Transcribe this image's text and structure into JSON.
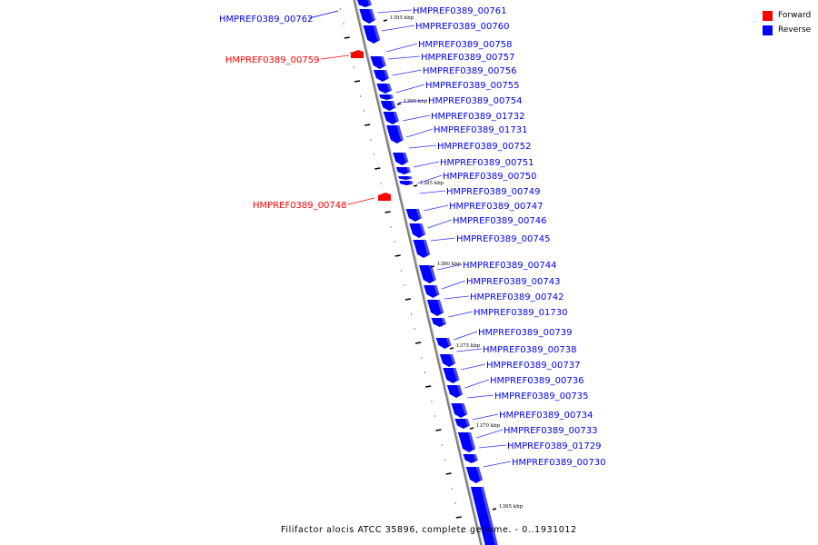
{
  "legend": {
    "items": [
      {
        "label": "Forward",
        "color": "#ff0000"
      },
      {
        "label": "Reverse",
        "color": "#0000ff"
      }
    ]
  },
  "caption": "Filifactor alocis ATCC 35896, complete genome. - 0..1931012",
  "colors": {
    "forward": "#ff0000",
    "reverse": "#0000ff",
    "label_forward": "#ff0000",
    "label_reverse": "#0000ee",
    "backbone": "#808080"
  },
  "tick_labels": [
    "1395 kbp",
    "1390 kbp",
    "1385 kbp",
    "1380 kbp",
    "1375 kbp",
    "1370 kbp",
    "1365 kbp"
  ],
  "genes_left": [
    {
      "name": "HMPREF0389_00762",
      "strand": "reverse"
    },
    {
      "name": "HMPREF0389_00759",
      "strand": "forward"
    },
    {
      "name": "HMPREF0389_00748",
      "strand": "forward"
    }
  ],
  "genes_right": [
    "HMPREF0389_00761",
    "HMPREF0389_00760",
    "HMPREF0389_00758",
    "HMPREF0389_00757",
    "HMPREF0389_00756",
    "HMPREF0389_00755",
    "HMPREF0389_00754",
    "HMPREF0389_01732",
    "HMPREF0389_01731",
    "HMPREF0389_00752",
    "HMPREF0389_00751",
    "HMPREF0389_00750",
    "HMPREF0389_00749",
    "HMPREF0389_00747",
    "HMPREF0389_00746",
    "HMPREF0389_00745",
    "HMPREF0389_00744",
    "HMPREF0389_00743",
    "HMPREF0389_00742",
    "HMPREF0389_01730",
    "HMPREF0389_00739",
    "HMPREF0389_00738",
    "HMPREF0389_00737",
    "HMPREF0389_00736",
    "HMPREF0389_00735",
    "HMPREF0389_00734",
    "HMPREF0389_00733",
    "HMPREF0389_01729",
    "HMPREF0389_00730"
  ]
}
